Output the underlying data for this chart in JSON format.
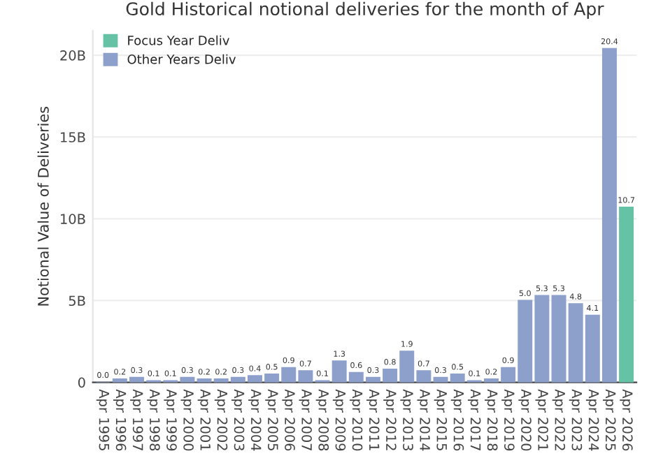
{
  "chart_data": {
    "type": "bar",
    "title": "Gold Historical notional deliveries for the month of Apr",
    "ylabel": "Notional Value of Deliveries",
    "categories": [
      "Apr 1995",
      "Apr 1996",
      "Apr 1997",
      "Apr 1998",
      "Apr 1999",
      "Apr 2000",
      "Apr 2001",
      "Apr 2002",
      "Apr 2003",
      "Apr 2004",
      "Apr 2005",
      "Apr 2006",
      "Apr 2007",
      "Apr 2008",
      "Apr 2009",
      "Apr 2010",
      "Apr 2011",
      "Apr 2012",
      "Apr 2013",
      "Apr 2014",
      "Apr 2015",
      "Apr 2016",
      "Apr 2017",
      "Apr 2018",
      "Apr 2019",
      "Apr 2020",
      "Apr 2021",
      "Apr 2022",
      "Apr 2023",
      "Apr 2024",
      "Apr 2025",
      "Apr 2026"
    ],
    "series": [
      {
        "name": "Focus Year Deliv",
        "color": "#66c2a5",
        "values": [
          null,
          null,
          null,
          null,
          null,
          null,
          null,
          null,
          null,
          null,
          null,
          null,
          null,
          null,
          null,
          null,
          null,
          null,
          null,
          null,
          null,
          null,
          null,
          null,
          null,
          null,
          null,
          null,
          null,
          null,
          null,
          10.7
        ],
        "value_labels": [
          null,
          null,
          null,
          null,
          null,
          null,
          null,
          null,
          null,
          null,
          null,
          null,
          null,
          null,
          null,
          null,
          null,
          null,
          null,
          null,
          null,
          null,
          null,
          null,
          null,
          null,
          null,
          null,
          null,
          null,
          null,
          "10.7"
        ]
      },
      {
        "name": "Other Years Deliv",
        "color": "#8da0cb",
        "values": [
          0.0,
          0.2,
          0.3,
          0.1,
          0.1,
          0.3,
          0.2,
          0.2,
          0.3,
          0.4,
          0.5,
          0.9,
          0.7,
          0.1,
          1.3,
          0.6,
          0.3,
          0.8,
          1.9,
          0.7,
          0.3,
          0.5,
          0.1,
          0.2,
          0.9,
          5.0,
          5.3,
          5.3,
          4.8,
          4.1,
          20.4,
          null
        ],
        "value_labels": [
          "0.0",
          "0.2",
          "0.3",
          "0.1",
          "0.1",
          "0.3",
          "0.2",
          "0.2",
          "0.3",
          "0.4",
          "0.5",
          "0.9",
          "0.7",
          "0.1",
          "1.3",
          "0.6",
          "0.3",
          "0.8",
          "1.9",
          "0.7",
          "0.3",
          "0.5",
          "0.1",
          "0.2",
          "0.9",
          "5.0",
          "5.3",
          "5.3",
          "4.8",
          "4.1",
          "20.4",
          null
        ]
      }
    ],
    "ylim": [
      0,
      21.5
    ],
    "yticks": [
      0,
      {
        "value": 5,
        "label": "5B"
      },
      {
        "value": 10,
        "label": "10B"
      },
      {
        "value": 15,
        "label": "15B"
      },
      {
        "value": 20,
        "label": "20B"
      }
    ],
    "grid": "y",
    "legend": "top left"
  }
}
